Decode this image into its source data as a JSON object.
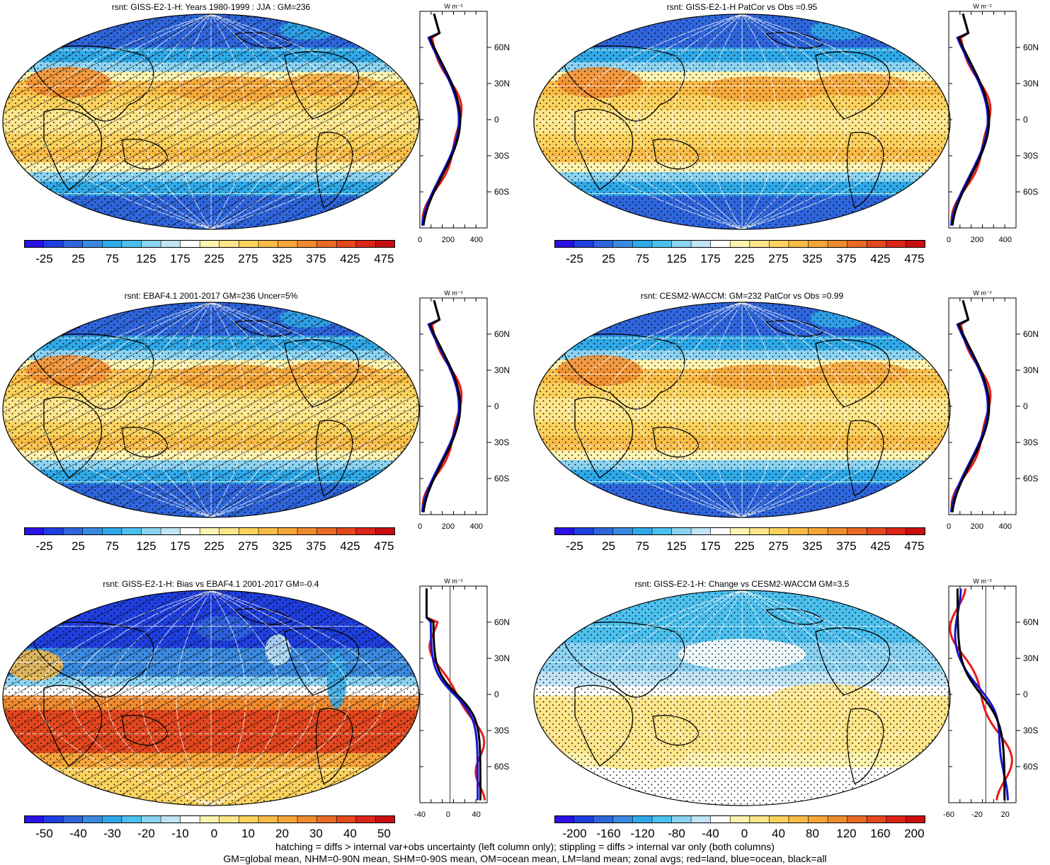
{
  "panels": [
    {
      "title": "rsnt: GISS-E2-1-H: Years 1980-1999 : JJA : GM=236",
      "scale": "abs",
      "hatch": true,
      "stipple": true,
      "cbar_labels": [
        "-25",
        "25",
        "75",
        "125",
        "175",
        "225",
        "275",
        "325",
        "375",
        "425",
        "475"
      ],
      "zonal_ticks": [
        "0",
        "200",
        "400"
      ],
      "zonal_unit": "W m⁻²",
      "lat_labels": [
        "60N",
        "30N",
        "0",
        "30S",
        "60S"
      ]
    },
    {
      "title": "rsnt: GISS-E2-1-H PatCor vs Obs =0.95",
      "scale": "abs",
      "hatch": false,
      "stipple": true,
      "cbar_labels": [
        "-25",
        "25",
        "75",
        "125",
        "175",
        "225",
        "275",
        "325",
        "375",
        "425",
        "475"
      ],
      "zonal_ticks": [
        "0",
        "200",
        "400"
      ],
      "zonal_unit": "W m⁻²",
      "lat_labels": [
        "60N",
        "30N",
        "0",
        "30S",
        "60S"
      ]
    },
    {
      "title": "rsnt: EBAF4.1 2001-2017 GM=236 Uncer=5%",
      "scale": "abs",
      "hatch": true,
      "stipple": true,
      "cbar_labels": [
        "-25",
        "25",
        "75",
        "125",
        "175",
        "225",
        "275",
        "325",
        "375",
        "425",
        "475"
      ],
      "zonal_ticks": [
        "0",
        "200",
        "400"
      ],
      "zonal_unit": "W m⁻²",
      "lat_labels": [
        "60N",
        "30N",
        "0",
        "30S",
        "60S"
      ]
    },
    {
      "title": "rsnt: CESM2-WACCM: GM=232 PatCor vs Obs =0.99",
      "scale": "abs",
      "hatch": false,
      "stipple": true,
      "cbar_labels": [
        "-25",
        "25",
        "75",
        "125",
        "175",
        "225",
        "275",
        "325",
        "375",
        "425",
        "475"
      ],
      "zonal_ticks": [
        "0",
        "200",
        "400"
      ],
      "zonal_unit": "W m⁻²",
      "lat_labels": [
        "60N",
        "30N",
        "0",
        "30S",
        "60S"
      ]
    },
    {
      "title": "rsnt: GISS-E2-1-H: Bias vs EBAF4.1 2001-2017 GM=-0.4",
      "scale": "bias",
      "hatch": true,
      "stipple": true,
      "cbar_labels": [
        "-50",
        "-40",
        "-30",
        "-20",
        "-10",
        "0",
        "10",
        "20",
        "30",
        "40",
        "50"
      ],
      "zonal_ticks": [
        "-40",
        "0",
        "40"
      ],
      "zonal_unit": "W m⁻²",
      "lat_labels": [
        "60N",
        "30N",
        "0",
        "30S",
        "60S"
      ]
    },
    {
      "title": "rsnt: GISS-E2-1-H: Change vs CESM2-WACCM GM=3.5",
      "scale": "change",
      "hatch": false,
      "stipple": true,
      "cbar_labels": [
        "-200",
        "-160",
        "-120",
        "-80",
        "-40",
        "0",
        "40",
        "80",
        "120",
        "160",
        "200"
      ],
      "zonal_ticks": [
        "-60",
        "-20",
        "20"
      ],
      "zonal_unit": "W m⁻²",
      "lat_labels": [
        "60N",
        "30N",
        "0",
        "30S",
        "60S"
      ]
    }
  ],
  "colors": {
    "palette": [
      "#2a12e6",
      "#1f3fe0",
      "#2f66dd",
      "#3a8ae0",
      "#2fa9e8",
      "#4cc0ee",
      "#8cd3f2",
      "#c2e4f4",
      "#ffffff",
      "#fdf3b0",
      "#fde58a",
      "#fbd25e",
      "#f8bc46",
      "#f5a53a",
      "#f08a2e",
      "#ea6a25",
      "#e3471e",
      "#dc2516",
      "#c90e10"
    ],
    "zonal_land": "#e81a1a",
    "zonal_ocean": "#1414d8",
    "zonal_all": "#000000"
  },
  "footer": {
    "line1": "hatching = diffs > internal var+obs uncertainty (left column only); stippling = diffs > internal var only (both columns)",
    "line2": "GM=global mean, NHM=0-90N mean, SHM=0-90S mean, OM=ocean mean, LM=land mean; zonal avgs; red=land, blue=ocean, black=all"
  }
}
